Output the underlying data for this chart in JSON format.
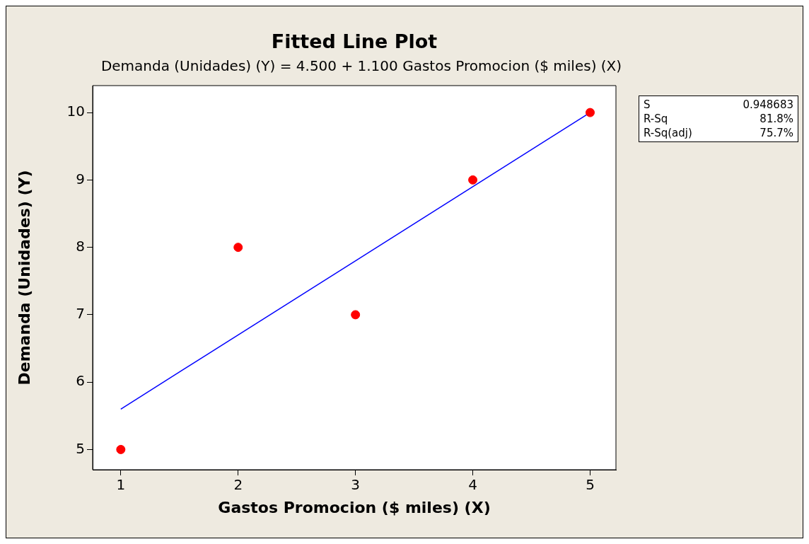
{
  "chart_data": {
    "type": "scatter",
    "title": "Fitted Line Plot",
    "subtitle": "Demanda (Unidades) (Y) =  4.500 + 1.100 Gastos Promocion ($ miles) (X)",
    "xlabel": "Gastos Promocion ($ miles) (X)",
    "ylabel": "Demanda (Unidades) (Y)",
    "series": [
      {
        "type": "scatter",
        "color": "#ff0000",
        "marker": "circle",
        "x": [
          1,
          2,
          3,
          4,
          5
        ],
        "values": [
          5,
          8,
          7,
          9,
          10
        ]
      },
      {
        "type": "line",
        "color": "#0000ff",
        "marker": "none",
        "x": [
          1,
          5
        ],
        "values": [
          5.6,
          10.0
        ]
      }
    ],
    "grid": false,
    "legend": false,
    "xlim": [
      0.76,
      5.22
    ],
    "xticks": [
      1,
      2,
      3,
      4,
      5
    ],
    "ylim": [
      4.7,
      10.4
    ],
    "yticks": [
      5,
      6,
      7,
      8,
      9,
      10
    ],
    "annotations": [
      "S 0.948683",
      "R-Sq 81.8%",
      "R-Sq(adj) 75.7%"
    ]
  }
}
